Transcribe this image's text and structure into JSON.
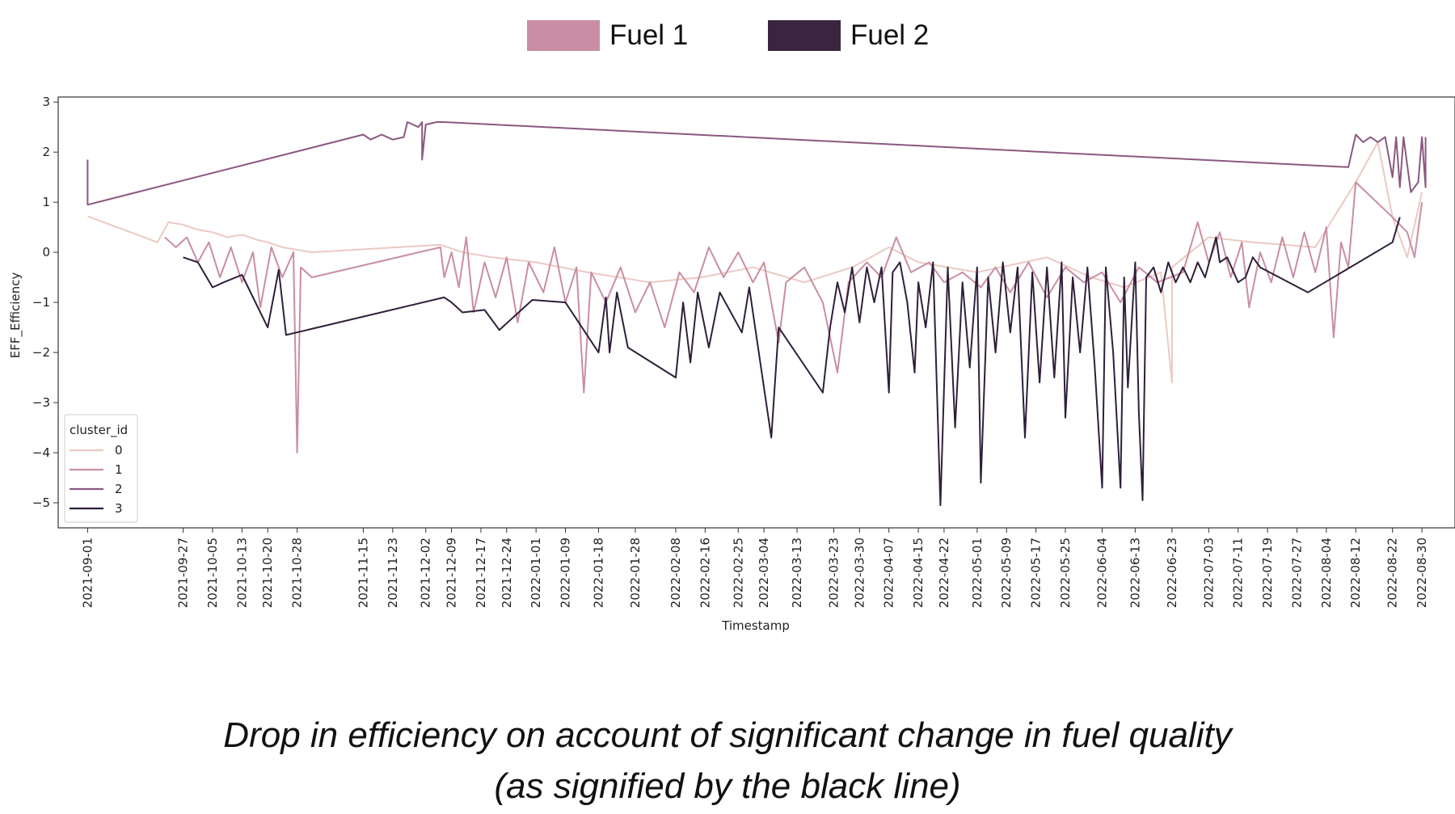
{
  "top_legend": {
    "items": [
      {
        "label": "Fuel 1",
        "color": "#c98ea3"
      },
      {
        "label": "Fuel 2",
        "color": "#3a2541"
      }
    ]
  },
  "caption": {
    "line1": "Drop in efficiency on account of significant change in fuel quality",
    "line2": "(as signified by the black line)"
  },
  "chart_data": {
    "type": "line",
    "xlabel": "Timestamp",
    "ylabel": "EFF_Efficiency",
    "ylim": [
      -5.5,
      3.1
    ],
    "yticks": [
      -5,
      -4,
      -3,
      -2,
      -1,
      0,
      1,
      2,
      3
    ],
    "xrange": [
      "2021-08-24",
      "2022-09-08"
    ],
    "xticks": [
      "2021-09-01",
      "2021-09-27",
      "2021-10-05",
      "2021-10-13",
      "2021-10-20",
      "2021-10-28",
      "2021-11-15",
      "2021-11-23",
      "2021-12-02",
      "2021-12-09",
      "2021-12-17",
      "2021-12-24",
      "2022-01-01",
      "2022-01-09",
      "2022-01-18",
      "2022-01-28",
      "2022-02-08",
      "2022-02-16",
      "2022-02-25",
      "2022-03-04",
      "2022-03-13",
      "2022-03-23",
      "2022-03-30",
      "2022-04-07",
      "2022-04-15",
      "2022-04-22",
      "2022-05-01",
      "2022-05-09",
      "2022-05-17",
      "2022-05-25",
      "2022-06-04",
      "2022-06-13",
      "2022-06-23",
      "2022-07-03",
      "2022-07-11",
      "2022-07-19",
      "2022-07-27",
      "2022-08-04",
      "2022-08-12",
      "2022-08-22",
      "2022-08-30"
    ],
    "legend": {
      "title": "cluster_id",
      "position": "lower-left"
    },
    "grid": false,
    "series": [
      {
        "name": "0",
        "color": "#ecc9c2",
        "points": [
          [
            "2021-09-01",
            0.72
          ],
          [
            "2021-09-20",
            0.2
          ],
          [
            "2021-09-23",
            0.6
          ],
          [
            "2021-09-27",
            0.55
          ],
          [
            "2021-10-01",
            0.45
          ],
          [
            "2021-10-05",
            0.4
          ],
          [
            "2021-10-09",
            0.3
          ],
          [
            "2021-10-13",
            0.35
          ],
          [
            "2021-10-17",
            0.25
          ],
          [
            "2021-10-20",
            0.2
          ],
          [
            "2021-10-24",
            0.1
          ],
          [
            "2021-10-28",
            0.05
          ],
          [
            "2021-11-01",
            0.0
          ],
          [
            "2021-12-06",
            0.15
          ],
          [
            "2021-12-12",
            0.0
          ],
          [
            "2021-12-20",
            -0.1
          ],
          [
            "2022-01-01",
            -0.2
          ],
          [
            "2022-01-15",
            -0.4
          ],
          [
            "2022-02-01",
            -0.6
          ],
          [
            "2022-02-15",
            -0.5
          ],
          [
            "2022-03-01",
            -0.3
          ],
          [
            "2022-03-15",
            -0.6
          ],
          [
            "2022-03-28",
            -0.3
          ],
          [
            "2022-04-07",
            0.1
          ],
          [
            "2022-04-15",
            -0.2
          ],
          [
            "2022-05-01",
            -0.4
          ],
          [
            "2022-05-20",
            -0.1
          ],
          [
            "2022-06-01",
            -0.5
          ],
          [
            "2022-06-10",
            -0.7
          ],
          [
            "2022-06-20",
            -0.4
          ],
          [
            "2022-06-23",
            -2.6
          ],
          [
            "2022-06-23",
            -0.3
          ],
          [
            "2022-07-03",
            0.3
          ],
          [
            "2022-07-15",
            0.2
          ],
          [
            "2022-08-01",
            0.1
          ],
          [
            "2022-08-12",
            1.4
          ],
          [
            "2022-08-18",
            2.2
          ],
          [
            "2022-08-22",
            0.7
          ],
          [
            "2022-08-26",
            -0.1
          ],
          [
            "2022-08-30",
            1.2
          ]
        ]
      },
      {
        "name": "1",
        "color": "#c98ea3",
        "points": [
          [
            "2021-09-22",
            0.3
          ],
          [
            "2021-09-25",
            0.1
          ],
          [
            "2021-09-28",
            0.3
          ],
          [
            "2021-10-01",
            -0.2
          ],
          [
            "2021-10-04",
            0.2
          ],
          [
            "2021-10-07",
            -0.5
          ],
          [
            "2021-10-10",
            0.1
          ],
          [
            "2021-10-13",
            -0.6
          ],
          [
            "2021-10-16",
            0.0
          ],
          [
            "2021-10-18",
            -1.1
          ],
          [
            "2021-10-21",
            0.1
          ],
          [
            "2021-10-24",
            -0.5
          ],
          [
            "2021-10-27",
            0.0
          ],
          [
            "2021-10-28",
            -4.0
          ],
          [
            "2021-10-29",
            -0.3
          ],
          [
            "2021-11-01",
            -0.5
          ],
          [
            "2021-12-06",
            0.1
          ],
          [
            "2021-12-07",
            -0.5
          ],
          [
            "2021-12-09",
            0.0
          ],
          [
            "2021-12-11",
            -0.7
          ],
          [
            "2021-12-13",
            0.3
          ],
          [
            "2021-12-15",
            -1.2
          ],
          [
            "2021-12-18",
            -0.2
          ],
          [
            "2021-12-21",
            -0.9
          ],
          [
            "2021-12-24",
            -0.1
          ],
          [
            "2021-12-27",
            -1.4
          ],
          [
            "2021-12-30",
            -0.2
          ],
          [
            "2022-01-03",
            -0.8
          ],
          [
            "2022-01-06",
            0.1
          ],
          [
            "2022-01-09",
            -1.0
          ],
          [
            "2022-01-12",
            -0.3
          ],
          [
            "2022-01-14",
            -2.8
          ],
          [
            "2022-01-16",
            -0.4
          ],
          [
            "2022-01-20",
            -1.0
          ],
          [
            "2022-01-24",
            -0.3
          ],
          [
            "2022-01-28",
            -1.2
          ],
          [
            "2022-02-01",
            -0.6
          ],
          [
            "2022-02-05",
            -1.5
          ],
          [
            "2022-02-09",
            -0.4
          ],
          [
            "2022-02-13",
            -0.8
          ],
          [
            "2022-02-17",
            0.1
          ],
          [
            "2022-02-21",
            -0.5
          ],
          [
            "2022-02-25",
            0.0
          ],
          [
            "2022-03-01",
            -0.6
          ],
          [
            "2022-03-04",
            -0.2
          ],
          [
            "2022-03-08",
            -1.8
          ],
          [
            "2022-03-10",
            -0.6
          ],
          [
            "2022-03-15",
            -0.3
          ],
          [
            "2022-03-20",
            -1.0
          ],
          [
            "2022-03-24",
            -2.4
          ],
          [
            "2022-03-27",
            -0.6
          ],
          [
            "2022-04-01",
            -0.2
          ],
          [
            "2022-04-05",
            -0.5
          ],
          [
            "2022-04-09",
            0.3
          ],
          [
            "2022-04-13",
            -0.4
          ],
          [
            "2022-04-18",
            -0.2
          ],
          [
            "2022-04-22",
            -0.6
          ],
          [
            "2022-04-27",
            -0.4
          ],
          [
            "2022-05-02",
            -0.7
          ],
          [
            "2022-05-06",
            -0.3
          ],
          [
            "2022-05-10",
            -0.8
          ],
          [
            "2022-05-15",
            -0.2
          ],
          [
            "2022-05-20",
            -0.9
          ],
          [
            "2022-05-25",
            -0.3
          ],
          [
            "2022-05-30",
            -0.6
          ],
          [
            "2022-06-04",
            -0.4
          ],
          [
            "2022-06-09",
            -1.0
          ],
          [
            "2022-06-14",
            -0.3
          ],
          [
            "2022-06-19",
            -0.6
          ],
          [
            "2022-06-26",
            -0.4
          ],
          [
            "2022-06-30",
            0.6
          ],
          [
            "2022-07-03",
            -0.2
          ],
          [
            "2022-07-06",
            0.4
          ],
          [
            "2022-07-09",
            -0.5
          ],
          [
            "2022-07-12",
            0.2
          ],
          [
            "2022-07-14",
            -1.1
          ],
          [
            "2022-07-17",
            0.0
          ],
          [
            "2022-07-20",
            -0.6
          ],
          [
            "2022-07-23",
            0.3
          ],
          [
            "2022-07-26",
            -0.5
          ],
          [
            "2022-07-29",
            0.4
          ],
          [
            "2022-08-01",
            -0.4
          ],
          [
            "2022-08-04",
            0.5
          ],
          [
            "2022-08-06",
            -1.7
          ],
          [
            "2022-08-08",
            0.2
          ],
          [
            "2022-08-10",
            -0.3
          ],
          [
            "2022-08-12",
            1.4
          ],
          [
            "2022-08-22",
            0.7
          ],
          [
            "2022-08-26",
            0.4
          ],
          [
            "2022-08-28",
            -0.1
          ],
          [
            "2022-08-30",
            1.0
          ]
        ]
      },
      {
        "name": "2",
        "color": "#8a5880",
        "points": [
          [
            "2021-09-01",
            1.85
          ],
          [
            "2021-09-01",
            0.95
          ],
          [
            "2021-11-15",
            2.35
          ],
          [
            "2021-11-17",
            2.25
          ],
          [
            "2021-11-20",
            2.35
          ],
          [
            "2021-11-23",
            2.25
          ],
          [
            "2021-11-26",
            2.3
          ],
          [
            "2021-11-27",
            2.6
          ],
          [
            "2021-11-30",
            2.5
          ],
          [
            "2021-12-01",
            2.6
          ],
          [
            "2021-12-01",
            1.85
          ],
          [
            "2021-12-02",
            2.55
          ],
          [
            "2021-12-05",
            2.6
          ],
          [
            "2021-12-07",
            2.6
          ],
          [
            "2022-08-10",
            1.7
          ],
          [
            "2022-08-12",
            2.35
          ],
          [
            "2022-08-14",
            2.2
          ],
          [
            "2022-08-16",
            2.3
          ],
          [
            "2022-08-18",
            2.2
          ],
          [
            "2022-08-20",
            2.3
          ],
          [
            "2022-08-22",
            1.5
          ],
          [
            "2022-08-23",
            2.3
          ],
          [
            "2022-08-24",
            1.3
          ],
          [
            "2022-08-25",
            2.3
          ],
          [
            "2022-08-27",
            1.2
          ],
          [
            "2022-08-29",
            1.4
          ],
          [
            "2022-08-30",
            2.3
          ],
          [
            "2022-08-31",
            1.3
          ],
          [
            "2022-08-31",
            2.3
          ]
        ]
      },
      {
        "name": "3",
        "color": "#2f1f3a",
        "points": [
          [
            "2021-09-27",
            -0.1
          ],
          [
            "2021-10-01",
            -0.2
          ],
          [
            "2021-10-05",
            -0.7
          ],
          [
            "2021-10-08",
            -0.6
          ],
          [
            "2021-10-13",
            -0.45
          ],
          [
            "2021-10-20",
            -1.5
          ],
          [
            "2021-10-23",
            -0.35
          ],
          [
            "2021-10-25",
            -1.65
          ],
          [
            "2021-12-07",
            -0.9
          ],
          [
            "2021-12-09",
            -1.0
          ],
          [
            "2021-12-12",
            -1.2
          ],
          [
            "2021-12-18",
            -1.15
          ],
          [
            "2021-12-22",
            -1.55
          ],
          [
            "2021-12-31",
            -0.95
          ],
          [
            "2022-01-09",
            -1.0
          ],
          [
            "2022-01-18",
            -2.0
          ],
          [
            "2022-01-20",
            -0.9
          ],
          [
            "2022-01-21",
            -2.0
          ],
          [
            "2022-01-23",
            -0.8
          ],
          [
            "2022-01-26",
            -1.9
          ],
          [
            "2022-02-08",
            -2.5
          ],
          [
            "2022-02-10",
            -1.0
          ],
          [
            "2022-02-12",
            -2.2
          ],
          [
            "2022-02-14",
            -0.8
          ],
          [
            "2022-02-17",
            -1.9
          ],
          [
            "2022-02-20",
            -0.8
          ],
          [
            "2022-02-26",
            -1.6
          ],
          [
            "2022-02-28",
            -0.7
          ],
          [
            "2022-03-06",
            -3.7
          ],
          [
            "2022-03-08",
            -1.5
          ],
          [
            "2022-03-20",
            -2.8
          ],
          [
            "2022-03-22",
            -1.5
          ],
          [
            "2022-03-24",
            -0.6
          ],
          [
            "2022-03-26",
            -1.2
          ],
          [
            "2022-03-28",
            -0.3
          ],
          [
            "2022-03-30",
            -1.4
          ],
          [
            "2022-04-01",
            -0.3
          ],
          [
            "2022-04-03",
            -1.0
          ],
          [
            "2022-04-05",
            -0.3
          ],
          [
            "2022-04-07",
            -2.8
          ],
          [
            "2022-04-08",
            -0.4
          ],
          [
            "2022-04-10",
            -0.2
          ],
          [
            "2022-04-12",
            -1.0
          ],
          [
            "2022-04-14",
            -2.4
          ],
          [
            "2022-04-15",
            -0.6
          ],
          [
            "2022-04-17",
            -1.5
          ],
          [
            "2022-04-19",
            -0.2
          ],
          [
            "2022-04-21",
            -5.05
          ],
          [
            "2022-04-23",
            -0.3
          ],
          [
            "2022-04-25",
            -3.5
          ],
          [
            "2022-04-27",
            -0.6
          ],
          [
            "2022-04-29",
            -2.3
          ],
          [
            "2022-05-01",
            -0.3
          ],
          [
            "2022-05-02",
            -4.6
          ],
          [
            "2022-05-04",
            -0.5
          ],
          [
            "2022-05-06",
            -2.0
          ],
          [
            "2022-05-08",
            -0.2
          ],
          [
            "2022-05-10",
            -1.6
          ],
          [
            "2022-05-12",
            -0.3
          ],
          [
            "2022-05-14",
            -3.7
          ],
          [
            "2022-05-16",
            -0.4
          ],
          [
            "2022-05-18",
            -2.6
          ],
          [
            "2022-05-20",
            -0.3
          ],
          [
            "2022-05-22",
            -2.5
          ],
          [
            "2022-05-24",
            -0.2
          ],
          [
            "2022-05-25",
            -3.3
          ],
          [
            "2022-05-27",
            -0.5
          ],
          [
            "2022-05-29",
            -2.0
          ],
          [
            "2022-05-31",
            -0.3
          ],
          [
            "2022-06-02",
            -2.3
          ],
          [
            "2022-06-04",
            -4.7
          ],
          [
            "2022-06-05",
            -0.3
          ],
          [
            "2022-06-07",
            -2.0
          ],
          [
            "2022-06-09",
            -4.7
          ],
          [
            "2022-06-10",
            -0.5
          ],
          [
            "2022-06-11",
            -2.7
          ],
          [
            "2022-06-13",
            -0.2
          ],
          [
            "2022-06-14",
            -3.2
          ],
          [
            "2022-06-15",
            -4.95
          ],
          [
            "2022-06-16",
            -0.5
          ],
          [
            "2022-06-18",
            -0.3
          ],
          [
            "2022-06-20",
            -0.8
          ],
          [
            "2022-06-22",
            -0.2
          ],
          [
            "2022-06-24",
            -0.6
          ],
          [
            "2022-06-26",
            -0.3
          ],
          [
            "2022-06-28",
            -0.6
          ],
          [
            "2022-06-30",
            -0.2
          ],
          [
            "2022-07-02",
            -0.5
          ],
          [
            "2022-07-05",
            0.3
          ],
          [
            "2022-07-06",
            -0.2
          ],
          [
            "2022-07-08",
            -0.1
          ],
          [
            "2022-07-11",
            -0.6
          ],
          [
            "2022-07-13",
            -0.5
          ],
          [
            "2022-07-15",
            -0.1
          ],
          [
            "2022-07-17",
            -0.3
          ],
          [
            "2022-07-30",
            -0.8
          ],
          [
            "2022-08-22",
            0.2
          ],
          [
            "2022-08-24",
            0.7
          ]
        ]
      }
    ]
  }
}
